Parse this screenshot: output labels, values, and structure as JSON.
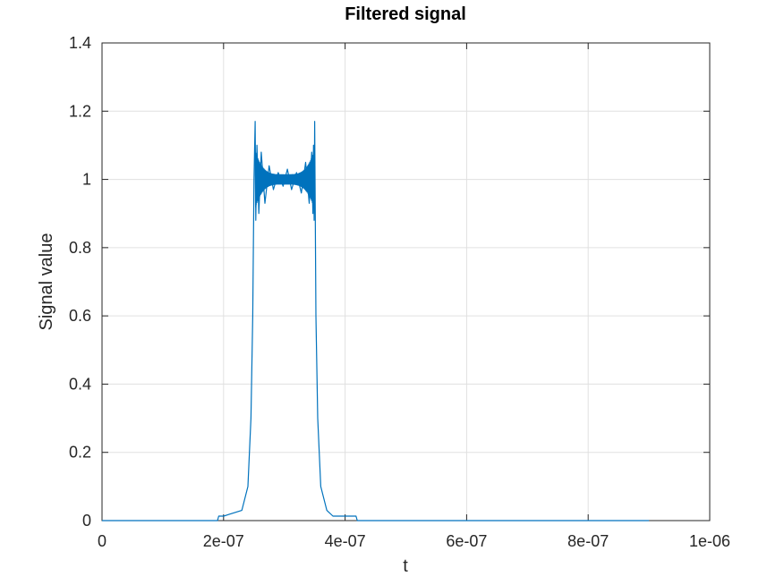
{
  "chart_data": {
    "type": "line",
    "title": "Filtered signal",
    "xlabel": "t",
    "ylabel": "Signal value",
    "xlim": [
      0,
      1e-06
    ],
    "ylim": [
      0,
      1.4
    ],
    "grid": true,
    "xticks": [
      {
        "value": 0,
        "label": "0"
      },
      {
        "value": 2e-07,
        "label": "2e-07"
      },
      {
        "value": 4e-07,
        "label": "4e-07"
      },
      {
        "value": 6e-07,
        "label": "6e-07"
      },
      {
        "value": 8e-07,
        "label": "8e-07"
      },
      {
        "value": 1e-06,
        "label": "1e-06"
      }
    ],
    "yticks": [
      {
        "value": 0,
        "label": "0"
      },
      {
        "value": 0.2,
        "label": "0.2"
      },
      {
        "value": 0.4,
        "label": "0.4"
      },
      {
        "value": 0.6,
        "label": "0.6"
      },
      {
        "value": 0.8,
        "label": "0.8"
      },
      {
        "value": 1,
        "label": "1"
      },
      {
        "value": 1.2,
        "label": "1.2"
      },
      {
        "value": 1.4,
        "label": "1.4"
      }
    ],
    "series": [
      {
        "color": "#0072BD",
        "x": [
          0,
          1.9e-07,
          1.92e-07,
          2e-07,
          2.3e-07,
          2.4e-07,
          2.45e-07,
          2.48e-07,
          2.5e-07,
          2.52e-07,
          2.53e-07,
          2.55e-07,
          2.58e-07,
          2.62e-07,
          2.68e-07,
          2.75e-07,
          2.82e-07,
          2.9e-07,
          2.98e-07,
          3.05e-07,
          3.12e-07,
          3.2e-07,
          3.28e-07,
          3.35e-07,
          3.41e-07,
          3.45e-07,
          3.47e-07,
          3.48e-07,
          3.49e-07,
          3.5e-07,
          3.52e-07,
          3.55e-07,
          3.6e-07,
          3.7e-07,
          3.8e-07,
          4e-07,
          4.18e-07,
          4.2e-07,
          5e-07,
          7e-07,
          9e-07
        ],
        "y": [
          0.0,
          0.0,
          0.013,
          0.013,
          0.03,
          0.1,
          0.3,
          0.6,
          1.0,
          1.17,
          0.88,
          1.1,
          0.9,
          1.08,
          0.93,
          1.04,
          0.97,
          1.02,
          0.98,
          1.03,
          0.97,
          1.02,
          0.96,
          1.05,
          0.93,
          1.08,
          0.9,
          1.1,
          0.88,
          1.17,
          0.6,
          0.3,
          0.1,
          0.03,
          0.013,
          0.013,
          0.013,
          0.0,
          0.0,
          0.0,
          0.0
        ]
      }
    ]
  }
}
